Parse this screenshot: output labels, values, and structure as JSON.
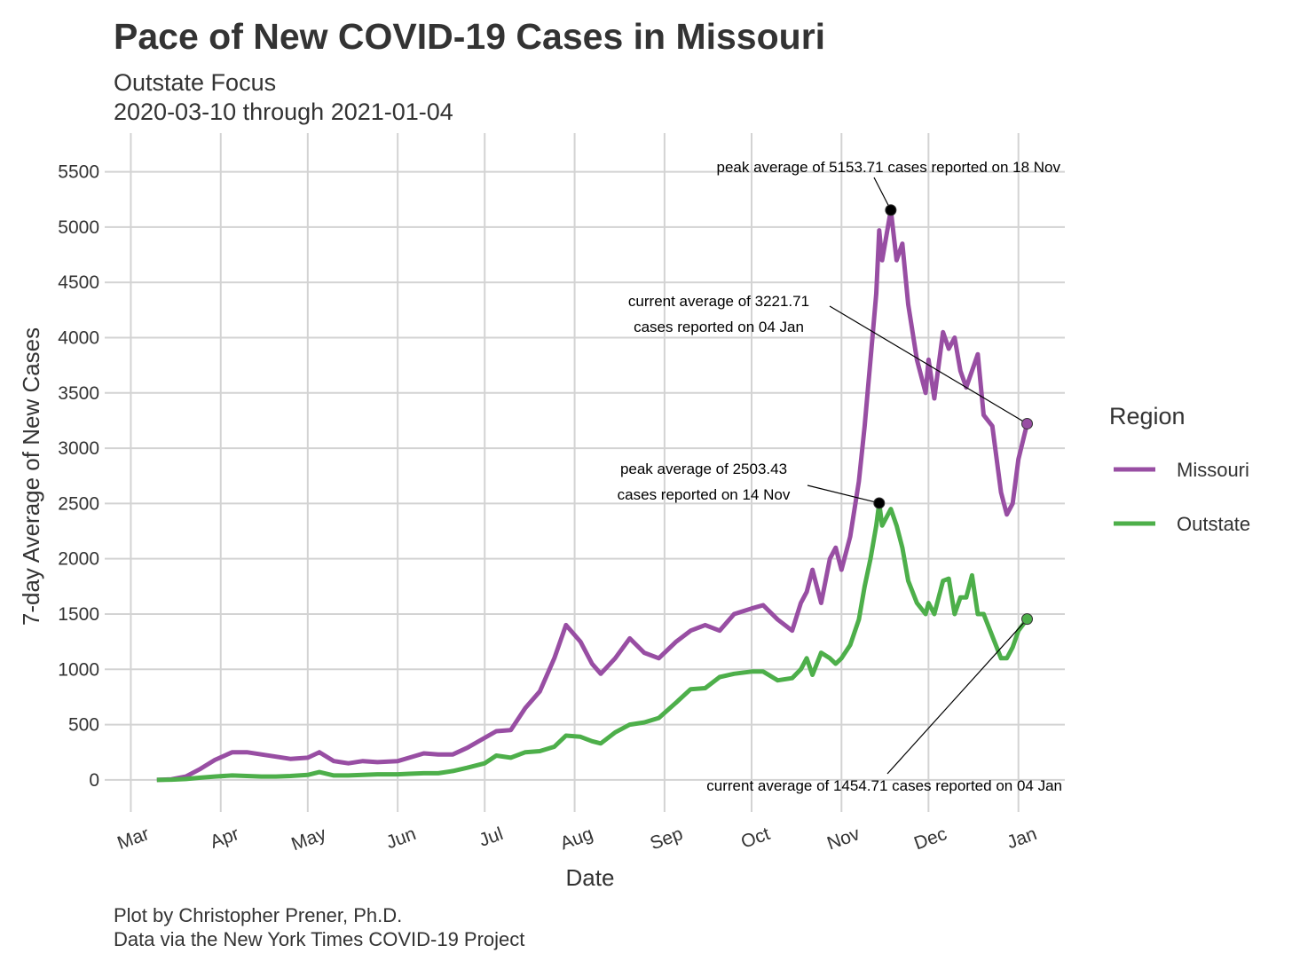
{
  "chart_data": {
    "type": "line",
    "title": "Pace of New COVID-19 Cases in Missouri",
    "subtitle": [
      "Outstate Focus",
      "2020-03-10 through 2021-01-04"
    ],
    "x_label": "Date",
    "y_label": "7-day Average of New Cases",
    "caption": [
      "Plot by Christopher Prener, Ph.D.",
      "Data via the New York Times COVID-19 Project"
    ],
    "legend_title": "Region",
    "legend": "right",
    "grid": true,
    "x": [
      "2020-03-10",
      "2020-03-15",
      "2020-03-20",
      "2020-03-25",
      "2020-03-30",
      "2020-04-05",
      "2020-04-10",
      "2020-04-15",
      "2020-04-20",
      "2020-04-25",
      "2020-05-01",
      "2020-05-05",
      "2020-05-10",
      "2020-05-15",
      "2020-05-20",
      "2020-05-25",
      "2020-06-01",
      "2020-06-05",
      "2020-06-10",
      "2020-06-15",
      "2020-06-20",
      "2020-06-25",
      "2020-07-01",
      "2020-07-05",
      "2020-07-10",
      "2020-07-15",
      "2020-07-20",
      "2020-07-25",
      "2020-07-29",
      "2020-08-03",
      "2020-08-07",
      "2020-08-10",
      "2020-08-15",
      "2020-08-20",
      "2020-08-25",
      "2020-08-30",
      "2020-09-05",
      "2020-09-10",
      "2020-09-15",
      "2020-09-20",
      "2020-09-25",
      "2020-10-01",
      "2020-10-05",
      "2020-10-10",
      "2020-10-15",
      "2020-10-18",
      "2020-10-20",
      "2020-10-22",
      "2020-10-25",
      "2020-10-28",
      "2020-10-30",
      "2020-11-01",
      "2020-11-04",
      "2020-11-07",
      "2020-11-09",
      "2020-11-11",
      "2020-11-13",
      "2020-11-14",
      "2020-11-15",
      "2020-11-18",
      "2020-11-20",
      "2020-11-22",
      "2020-11-24",
      "2020-11-27",
      "2020-11-30",
      "2020-12-01",
      "2020-12-03",
      "2020-12-06",
      "2020-12-08",
      "2020-12-10",
      "2020-12-12",
      "2020-12-14",
      "2020-12-16",
      "2020-12-18",
      "2020-12-20",
      "2020-12-23",
      "2020-12-26",
      "2020-12-28",
      "2020-12-30",
      "2021-01-01",
      "2021-01-04"
    ],
    "series": [
      {
        "name": "Missouri",
        "color": "#984ea3",
        "values": [
          0,
          5,
          30,
          100,
          180,
          250,
          250,
          230,
          210,
          190,
          200,
          250,
          170,
          150,
          170,
          160,
          170,
          200,
          240,
          230,
          230,
          290,
          380,
          440,
          450,
          650,
          800,
          1100,
          1400,
          1250,
          1050,
          960,
          1100,
          1280,
          1150,
          1100,
          1250,
          1350,
          1400,
          1350,
          1500,
          1550,
          1580,
          1450,
          1350,
          1600,
          1700,
          1900,
          1600,
          2000,
          2100,
          1900,
          2200,
          2700,
          3200,
          3800,
          4400,
          4970,
          4700,
          5153.71,
          4700,
          4850,
          4300,
          3800,
          3500,
          3800,
          3450,
          4050,
          3900,
          4000,
          3700,
          3550,
          3700,
          3850,
          3300,
          3200,
          2600,
          2400,
          2500,
          2900,
          3221.71
        ]
      },
      {
        "name": "Outstate",
        "color": "#4daf4a",
        "values": [
          0,
          2,
          8,
          20,
          30,
          40,
          35,
          30,
          30,
          35,
          45,
          70,
          40,
          40,
          45,
          50,
          50,
          55,
          60,
          60,
          80,
          110,
          150,
          220,
          200,
          250,
          260,
          300,
          400,
          390,
          350,
          330,
          430,
          500,
          520,
          560,
          700,
          820,
          830,
          930,
          960,
          980,
          980,
          900,
          920,
          1000,
          1100,
          950,
          1150,
          1100,
          1050,
          1100,
          1220,
          1450,
          1750,
          2000,
          2300,
          2503.43,
          2300,
          2450,
          2300,
          2100,
          1800,
          1600,
          1500,
          1600,
          1500,
          1800,
          1820,
          1500,
          1650,
          1650,
          1850,
          1500,
          1500,
          1300,
          1100,
          1100,
          1200,
          1350,
          1454.71
        ]
      }
    ],
    "annotations": [
      {
        "lines": [
          "peak average of 5153.71 cases reported on 18 Nov"
        ]
      },
      {
        "lines": [
          "current average of 3221.71",
          "cases reported on 04 Jan"
        ]
      },
      {
        "lines": [
          "peak average of 2503.43",
          "cases reported on 14 Nov"
        ]
      },
      {
        "lines": [
          "current average of 1454.71 cases reported on 04 Jan"
        ]
      }
    ],
    "xlim": [
      "2020-02-21",
      "2021-01-17"
    ],
    "xticks": [
      {
        "value": "2020-03-01",
        "label": "Mar"
      },
      {
        "value": "2020-04-01",
        "label": "Apr"
      },
      {
        "value": "2020-05-01",
        "label": "May"
      },
      {
        "value": "2020-06-01",
        "label": "Jun"
      },
      {
        "value": "2020-07-01",
        "label": "Jul"
      },
      {
        "value": "2020-08-01",
        "label": "Aug"
      },
      {
        "value": "2020-09-01",
        "label": "Sep"
      },
      {
        "value": "2020-10-01",
        "label": "Oct"
      },
      {
        "value": "2020-11-01",
        "label": "Nov"
      },
      {
        "value": "2020-12-01",
        "label": "Dec"
      },
      {
        "value": "2021-01-01",
        "label": "Jan"
      }
    ],
    "ylim": [
      -290,
      5850
    ],
    "yticks": [
      0,
      500,
      1000,
      1500,
      2000,
      2500,
      3000,
      3500,
      4000,
      4500,
      5000,
      5500
    ]
  }
}
